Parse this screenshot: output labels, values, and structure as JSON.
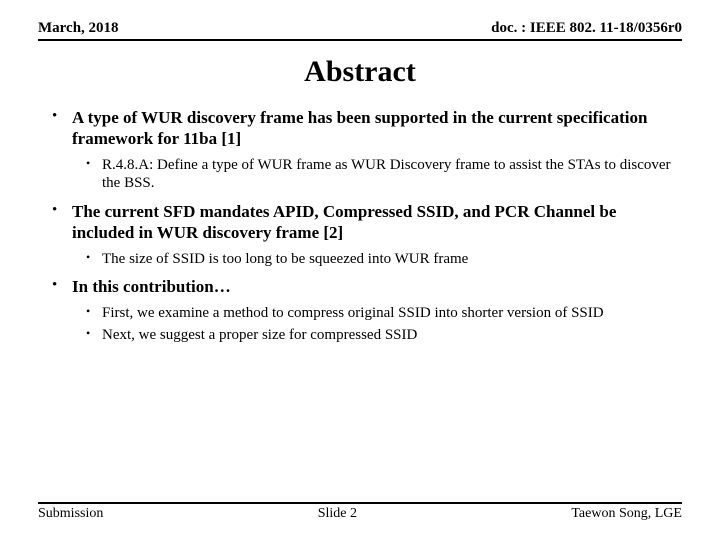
{
  "header": {
    "left": "March, 2018",
    "right": "doc. : IEEE 802. 11-18/0356r0"
  },
  "title": "Abstract",
  "bullets": [
    {
      "text": "A type of WUR discovery frame has been supported in the current specification framework for 11ba [1]",
      "sub": [
        "R.4.8.A: Define a type of WUR frame as WUR Discovery frame to assist the STAs to discover the BSS."
      ]
    },
    {
      "text": "The current SFD mandates APID, Compressed SSID, and PCR Channel be included in WUR discovery frame [2]",
      "sub": [
        "The size of SSID is too long to be squeezed into WUR frame"
      ]
    },
    {
      "text": "In this contribution…",
      "sub": [
        "First, we examine a method to compress original SSID into shorter version of SSID",
        "Next, we suggest a proper size for compressed SSID"
      ]
    }
  ],
  "footer": {
    "left": "Submission",
    "center": "Slide 2",
    "right": "Taewon Song, LGE"
  },
  "colors": {
    "background": "#ffffff",
    "text": "#000000",
    "rule": "#000000"
  },
  "fonts": {
    "family": "Times New Roman",
    "title_size_pt": 30,
    "header_size_pt": 15,
    "l1_size_pt": 17,
    "l2_size_pt": 15,
    "footer_size_pt": 14
  }
}
